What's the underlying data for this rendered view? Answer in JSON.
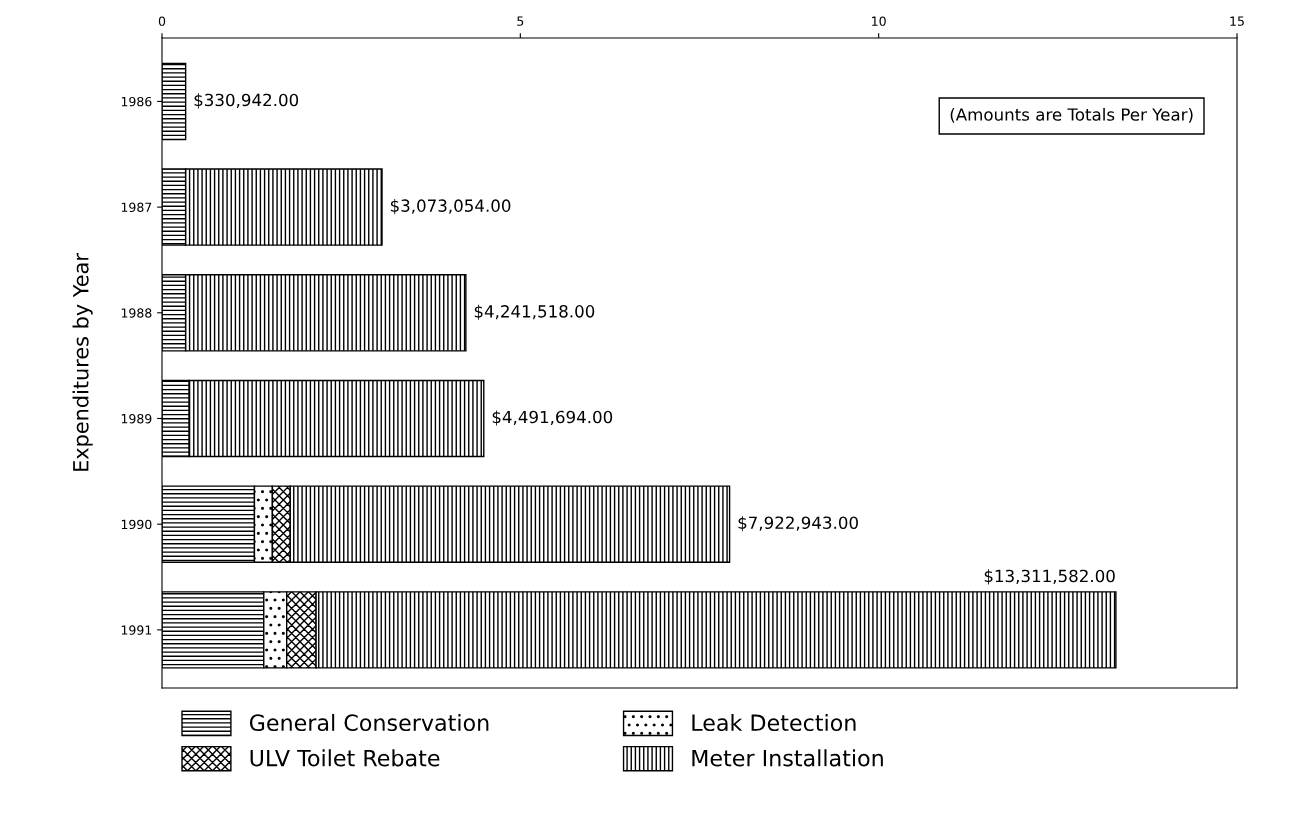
{
  "chart_data": {
    "type": "bar",
    "orientation": "horizontal",
    "stacked": true,
    "ylabel": "Expenditures by Year",
    "categories": [
      "1986",
      "1987",
      "1988",
      "1989",
      "1990",
      "1991"
    ],
    "series": [
      {
        "name": "General Conservation",
        "color": "#000000",
        "values": [
          0.33,
          0.33,
          0.33,
          0.38,
          1.29,
          1.42
        ]
      },
      {
        "name": "Leak Detection",
        "color": "#000000",
        "values": [
          null,
          null,
          null,
          null,
          0.25,
          0.32
        ]
      },
      {
        "name": "ULV Toilet Rebate",
        "color": "#000000",
        "values": [
          null,
          null,
          null,
          null,
          0.25,
          0.41
        ]
      },
      {
        "name": "Meter Installation",
        "color": "#000000",
        "values": [
          null,
          2.74,
          3.91,
          4.11,
          6.13,
          11.16
        ]
      }
    ],
    "xlim": [
      0,
      15
    ],
    "xticks": [
      0,
      5,
      10,
      15
    ],
    "annotations": [
      "(Amounts are Totals Per Year)",
      {
        "text": "$330,942.00",
        "x": 0.33,
        "y": "1986"
      },
      {
        "text": "$3,073,054.00",
        "x": 3.07,
        "y": "1987"
      },
      {
        "text": "$4,241,518.00",
        "x": 4.24,
        "y": "1988"
      },
      {
        "text": "$4,491,694.00",
        "x": 4.49,
        "y": "1989"
      },
      {
        "text": "$7,922,943.00",
        "x": 7.92,
        "y": "1990"
      },
      {
        "text": "$13,311,582.00",
        "x": 13.31,
        "y": "1991"
      }
    ],
    "legend": "bottom",
    "grid": false
  }
}
